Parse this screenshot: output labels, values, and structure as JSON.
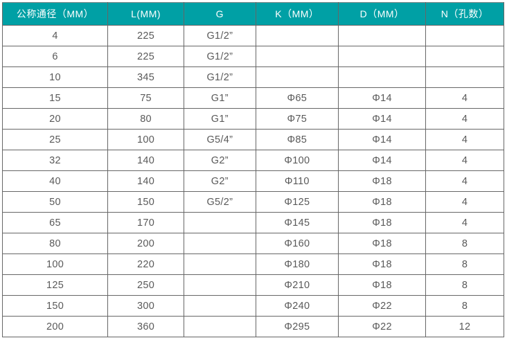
{
  "colors": {
    "header_background": "#00A0A5",
    "header_text": "#FFFFFF",
    "cell_text": "#595959",
    "grid_border": "#666666",
    "cell_background": "#FFFFFF"
  },
  "table": {
    "columns": [
      "公称通径（MM）",
      "L(MM)",
      "G",
      "K（MM）",
      "D（MM）",
      "N（孔数）"
    ],
    "rows": [
      [
        "4",
        "225",
        "G1/2”",
        "",
        "",
        ""
      ],
      [
        "6",
        "225",
        "G1/2”",
        "",
        "",
        ""
      ],
      [
        "10",
        "345",
        "G1/2”",
        "",
        "",
        ""
      ],
      [
        "15",
        "75",
        "G1”",
        "Φ65",
        "Φ14",
        "4"
      ],
      [
        "20",
        "80",
        "G1”",
        "Φ75",
        "Φ14",
        "4"
      ],
      [
        "25",
        "100",
        "G5/4”",
        "Φ85",
        "Φ14",
        "4"
      ],
      [
        "32",
        "140",
        "G2”",
        "Φ100",
        "Φ14",
        "4"
      ],
      [
        "40",
        "140",
        "G2”",
        "Φ110",
        "Φ18",
        "4"
      ],
      [
        "50",
        "150",
        "G5/2”",
        "Φ125",
        "Φ18",
        "4"
      ],
      [
        "65",
        "170",
        "",
        "Φ145",
        "Φ18",
        "4"
      ],
      [
        "80",
        "200",
        "",
        "Φ160",
        "Φ18",
        "8"
      ],
      [
        "100",
        "220",
        "",
        "Φ180",
        "Φ18",
        "8"
      ],
      [
        "125",
        "250",
        "",
        "Φ210",
        "Φ18",
        "8"
      ],
      [
        "150",
        "300",
        "",
        "Φ240",
        "Φ22",
        "8"
      ],
      [
        "200",
        "360",
        "",
        "Φ295",
        "Φ22",
        "12"
      ]
    ]
  }
}
